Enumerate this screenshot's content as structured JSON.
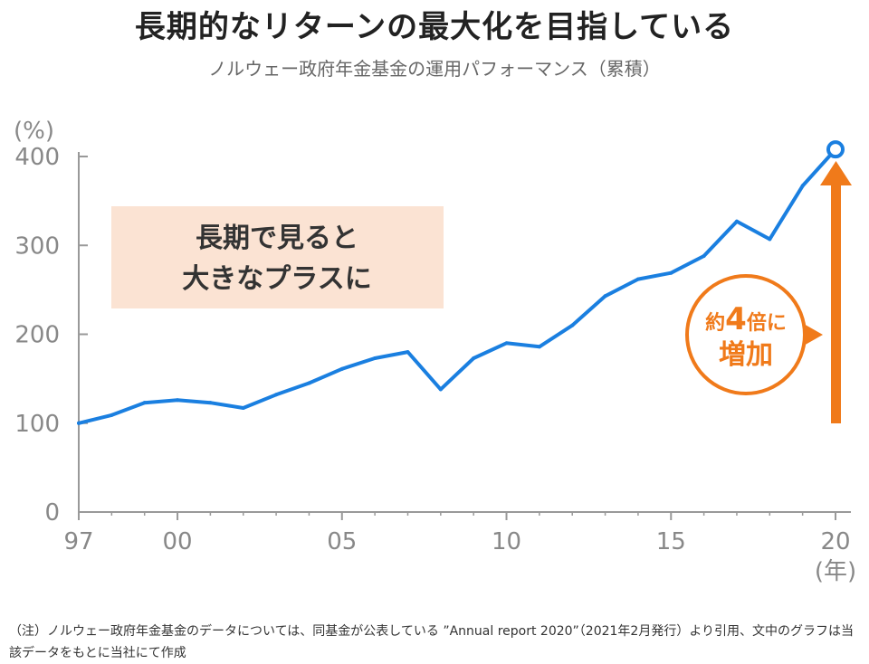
{
  "title": "長期的なリターンの最大化を目指している",
  "subtitle": "ノルウェー政府年金基金の運用パフォーマンス（累積）",
  "callout": {
    "line1": "長期で見ると",
    "line2": "大きなプラスに"
  },
  "badge": {
    "prefix": "約",
    "number": "4",
    "suffix": "倍に",
    "line2": "増加"
  },
  "note": "（注）ノルウェー政府年金基金のデータについては、同基金が公表している ”Annual report 2020”（2021年2月発行）より引用、文中のグラフは当該データをもとに当社にて作成",
  "colors": {
    "line": "#1a7fe0",
    "accent": "#f07a1a",
    "callout_bg": "#fbe3d3",
    "axis": "#999999",
    "tick_text": "#888888"
  },
  "chart_data": {
    "type": "line",
    "ylabel": "(%)",
    "xlabel": "(年)",
    "ylim": [
      0,
      400
    ],
    "y_ticks": [
      0,
      100,
      200,
      300,
      400
    ],
    "x_range": [
      1997,
      2020
    ],
    "x_ticks": [
      {
        "year": 1997,
        "label": "97"
      },
      {
        "year": 2000,
        "label": "00"
      },
      {
        "year": 2005,
        "label": "05"
      },
      {
        "year": 2010,
        "label": "10"
      },
      {
        "year": 2015,
        "label": "15"
      },
      {
        "year": 2020,
        "label": "20"
      }
    ],
    "x": [
      1997,
      1998,
      1999,
      2000,
      2001,
      2002,
      2003,
      2004,
      2005,
      2006,
      2007,
      2008,
      2009,
      2010,
      2011,
      2012,
      2013,
      2014,
      2015,
      2016,
      2017,
      2018,
      2019,
      2020
    ],
    "values": [
      100,
      109,
      123,
      126,
      123,
      117,
      132,
      145,
      161,
      173,
      180,
      138,
      173,
      190,
      186,
      210,
      243,
      262,
      269,
      288,
      327,
      307,
      367,
      408
    ],
    "grid": false,
    "marker_last": true
  }
}
